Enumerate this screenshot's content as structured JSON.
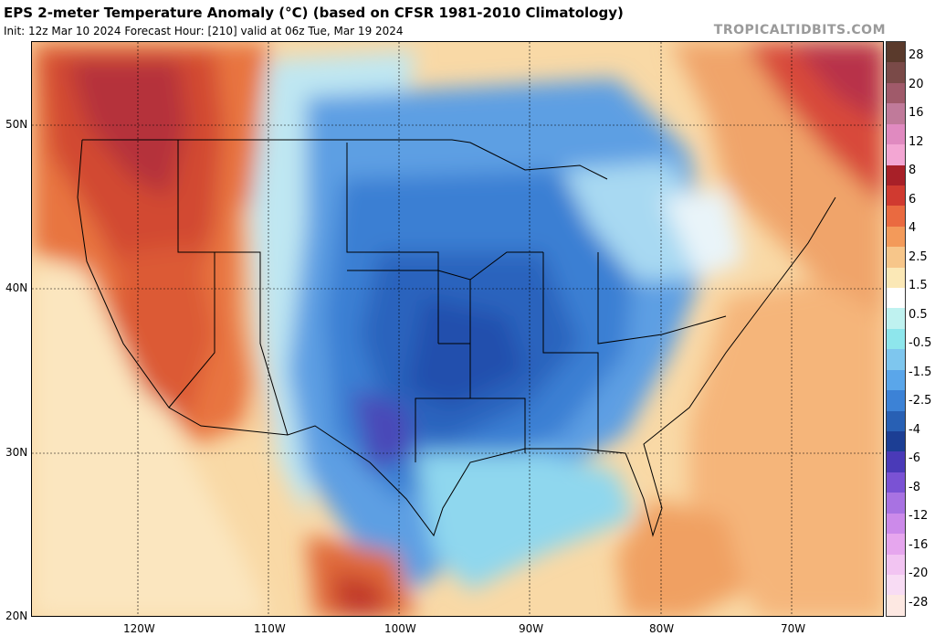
{
  "header": {
    "title": "EPS 2-meter Temperature Anomaly (°C) (based on CFSR 1981-2010 Climatology)",
    "subtitle": "Init: 12z Mar 10 2024   Forecast Hour: [210]   valid at 06z Tue, Mar 19 2024",
    "brand": "TROPICALTIDBITS.COM"
  },
  "map": {
    "lat_labels": [
      "50N",
      "40N",
      "30N",
      "20N"
    ],
    "lon_labels": [
      "120W",
      "110W",
      "100W",
      "90W",
      "80W",
      "70W"
    ]
  },
  "legend": {
    "labels": [
      "28",
      "20",
      "16",
      "12",
      "8",
      "6",
      "4",
      "2.5",
      "1.5",
      "0.5",
      "-0.5",
      "-1.5",
      "-2.5",
      "-4",
      "-6",
      "-8",
      "-12",
      "-16",
      "-20",
      "-28"
    ],
    "colors": [
      "#5a3a2c",
      "#7a4a48",
      "#a05a6a",
      "#c07a9a",
      "#e08ac0",
      "#f3a6d3",
      "#a82028",
      "#d03a30",
      "#ea6a40",
      "#f39a5a",
      "#f7c68a",
      "#fbe8b6",
      "#ffffff",
      "#bff2f0",
      "#8ee6ec",
      "#7ec6ee",
      "#5aa6ea",
      "#3c82d6",
      "#2860b4",
      "#1c3e94",
      "#4a3ab8",
      "#7a52d4",
      "#a872e2",
      "#cc8aea",
      "#e6a6ee",
      "#f2c4f2",
      "#f8dcf4",
      "#fde8e2"
    ]
  }
}
